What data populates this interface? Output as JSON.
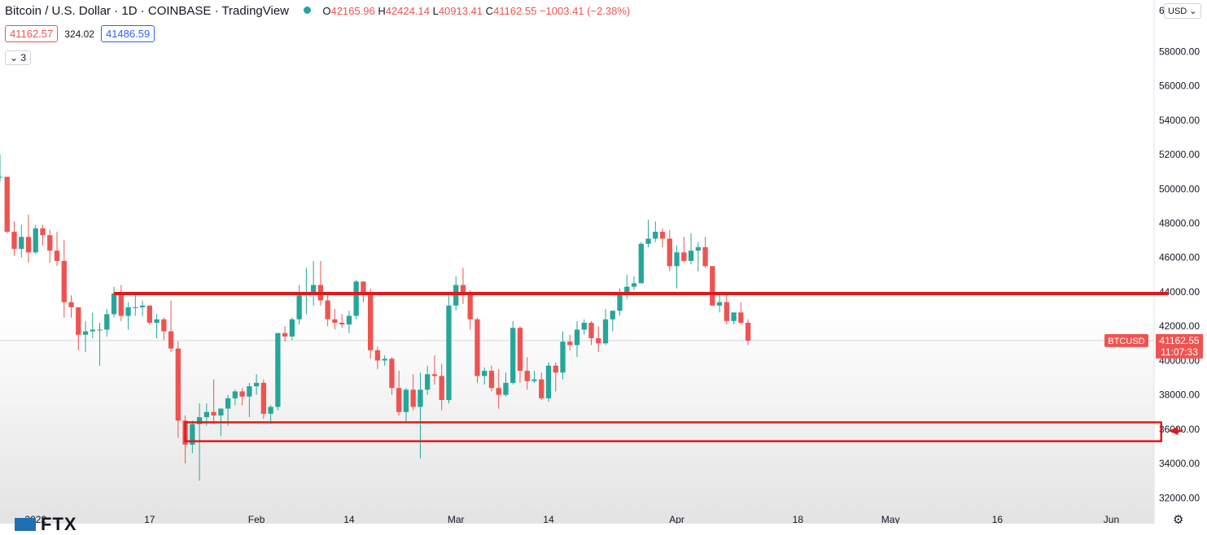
{
  "header": {
    "symbol_title": "Bitcoin / U.S. Dollar · 1D · COINBASE · TradingView",
    "open_label": "O",
    "open": "42165.96",
    "high_label": "H",
    "high": "42424.14",
    "low_label": "L",
    "low": "40913.41",
    "close_label": "C",
    "close": "41162.55",
    "change": "−1003.41 (−2.38%)"
  },
  "trade": {
    "sell": "41162.57",
    "spread": "324.02",
    "buy": "41486.59"
  },
  "indicator": {
    "label": "3"
  },
  "currency": {
    "label": "USD"
  },
  "price_tag": {
    "symbol": "BTCUSD",
    "price": "41162.55",
    "countdown": "11:07:33"
  },
  "watermark": {
    "label": "FTX"
  },
  "colors": {
    "up": "#26a69a",
    "down": "#ef5350",
    "annotation": "#e0191a",
    "axis_text": "#131722"
  },
  "chart_data": {
    "type": "candlestick",
    "y_axis": {
      "ticks": [
        32000,
        34000,
        36000,
        38000,
        40000,
        42000,
        44000,
        46000,
        48000,
        50000,
        52000,
        54000,
        56000,
        58000
      ],
      "tick_labels": [
        "32000.00",
        "34000.00",
        "36000.00",
        "38000.00",
        "40000.00",
        "42000.00",
        "44000.00",
        "46000.00",
        "48000.00",
        "50000.00",
        "52000.00",
        "54000.00",
        "56000.00",
        "58000.00"
      ],
      "top_partial_label": "6",
      "range": [
        30500,
        61000
      ]
    },
    "x_axis": {
      "date_range": [
        "2021-12-27",
        "2022-06-07"
      ],
      "ticks": [
        {
          "date": "2022-01-01",
          "label": "2022"
        },
        {
          "date": "2022-01-17",
          "label": "17"
        },
        {
          "date": "2022-02-01",
          "label": "Feb"
        },
        {
          "date": "2022-02-14",
          "label": "14"
        },
        {
          "date": "2022-03-01",
          "label": "Mar"
        },
        {
          "date": "2022-03-14",
          "label": "14"
        },
        {
          "date": "2022-04-01",
          "label": "Apr"
        },
        {
          "date": "2022-04-18",
          "label": "18"
        },
        {
          "date": "2022-05-01",
          "label": "May"
        },
        {
          "date": "2022-05-16",
          "label": "16"
        },
        {
          "date": "2022-06-01",
          "label": "Jun"
        }
      ]
    },
    "candles": [
      {
        "date": "2021-12-27",
        "o": 50700,
        "h": 52000,
        "l": 50400,
        "c": 50700
      },
      {
        "date": "2021-12-28",
        "o": 50700,
        "h": 50700,
        "l": 47400,
        "c": 47500
      },
      {
        "date": "2021-12-29",
        "o": 47500,
        "h": 48100,
        "l": 46100,
        "c": 46500
      },
      {
        "date": "2021-12-30",
        "o": 46500,
        "h": 47900,
        "l": 46000,
        "c": 47200
      },
      {
        "date": "2021-12-31",
        "o": 47200,
        "h": 48500,
        "l": 45700,
        "c": 46300
      },
      {
        "date": "2022-01-01",
        "o": 46300,
        "h": 47900,
        "l": 46200,
        "c": 47700
      },
      {
        "date": "2022-01-02",
        "o": 47700,
        "h": 47900,
        "l": 46700,
        "c": 47300
      },
      {
        "date": "2022-01-03",
        "o": 47300,
        "h": 47600,
        "l": 45700,
        "c": 46400
      },
      {
        "date": "2022-01-04",
        "o": 46400,
        "h": 47500,
        "l": 45500,
        "c": 45800
      },
      {
        "date": "2022-01-05",
        "o": 45800,
        "h": 47000,
        "l": 42500,
        "c": 43400
      },
      {
        "date": "2022-01-06",
        "o": 43400,
        "h": 43800,
        "l": 42500,
        "c": 43100
      },
      {
        "date": "2022-01-07",
        "o": 43100,
        "h": 43100,
        "l": 40600,
        "c": 41500
      },
      {
        "date": "2022-01-08",
        "o": 41500,
        "h": 42300,
        "l": 40500,
        "c": 41700
      },
      {
        "date": "2022-01-09",
        "o": 41700,
        "h": 42800,
        "l": 41300,
        "c": 41800
      },
      {
        "date": "2022-01-10",
        "o": 41800,
        "h": 42200,
        "l": 39700,
        "c": 41800
      },
      {
        "date": "2022-01-11",
        "o": 41800,
        "h": 43000,
        "l": 41400,
        "c": 42700
      },
      {
        "date": "2022-01-12",
        "o": 42700,
        "h": 44300,
        "l": 42500,
        "c": 43900
      },
      {
        "date": "2022-01-13",
        "o": 43900,
        "h": 44400,
        "l": 42300,
        "c": 42600
      },
      {
        "date": "2022-01-14",
        "o": 42600,
        "h": 43400,
        "l": 41800,
        "c": 43100
      },
      {
        "date": "2022-01-15",
        "o": 43100,
        "h": 43800,
        "l": 42600,
        "c": 43100
      },
      {
        "date": "2022-01-16",
        "o": 43100,
        "h": 43500,
        "l": 42600,
        "c": 43200
      },
      {
        "date": "2022-01-17",
        "o": 43200,
        "h": 43200,
        "l": 42100,
        "c": 42200
      },
      {
        "date": "2022-01-18",
        "o": 42200,
        "h": 42700,
        "l": 41300,
        "c": 42400
      },
      {
        "date": "2022-01-19",
        "o": 42400,
        "h": 42500,
        "l": 41200,
        "c": 41700
      },
      {
        "date": "2022-01-20",
        "o": 41700,
        "h": 43500,
        "l": 40500,
        "c": 40700
      },
      {
        "date": "2022-01-21",
        "o": 40700,
        "h": 41100,
        "l": 35500,
        "c": 36500
      },
      {
        "date": "2022-01-22",
        "o": 36500,
        "h": 36800,
        "l": 34000,
        "c": 35100
      },
      {
        "date": "2022-01-23",
        "o": 35100,
        "h": 36500,
        "l": 34600,
        "c": 36300
      },
      {
        "date": "2022-01-24",
        "o": 36300,
        "h": 37500,
        "l": 33000,
        "c": 36700
      },
      {
        "date": "2022-01-25",
        "o": 36700,
        "h": 37500,
        "l": 36200,
        "c": 37000
      },
      {
        "date": "2022-01-26",
        "o": 37000,
        "h": 38900,
        "l": 36300,
        "c": 36800
      },
      {
        "date": "2022-01-27",
        "o": 36800,
        "h": 37200,
        "l": 35600,
        "c": 37200
      },
      {
        "date": "2022-01-28",
        "o": 37200,
        "h": 38000,
        "l": 36200,
        "c": 37800
      },
      {
        "date": "2022-01-29",
        "o": 37800,
        "h": 38300,
        "l": 37400,
        "c": 38200
      },
      {
        "date": "2022-01-30",
        "o": 38200,
        "h": 38400,
        "l": 37400,
        "c": 37900
      },
      {
        "date": "2022-01-31",
        "o": 37900,
        "h": 38700,
        "l": 36700,
        "c": 38500
      },
      {
        "date": "2022-02-01",
        "o": 38500,
        "h": 39200,
        "l": 38000,
        "c": 38700
      },
      {
        "date": "2022-02-02",
        "o": 38700,
        "h": 38900,
        "l": 36600,
        "c": 36900
      },
      {
        "date": "2022-02-03",
        "o": 36900,
        "h": 37400,
        "l": 36300,
        "c": 37300
      },
      {
        "date": "2022-02-04",
        "o": 37300,
        "h": 41600,
        "l": 37100,
        "c": 41600
      },
      {
        "date": "2022-02-05",
        "o": 41600,
        "h": 42000,
        "l": 41100,
        "c": 41400
      },
      {
        "date": "2022-02-06",
        "o": 41400,
        "h": 42500,
        "l": 41200,
        "c": 42400
      },
      {
        "date": "2022-02-07",
        "o": 42400,
        "h": 44400,
        "l": 42100,
        "c": 43800
      },
      {
        "date": "2022-02-08",
        "o": 43800,
        "h": 45400,
        "l": 42700,
        "c": 44000
      },
      {
        "date": "2022-02-09",
        "o": 44000,
        "h": 45800,
        "l": 43200,
        "c": 44400
      },
      {
        "date": "2022-02-10",
        "o": 44400,
        "h": 45800,
        "l": 43200,
        "c": 43500
      },
      {
        "date": "2022-02-11",
        "o": 43500,
        "h": 43900,
        "l": 42000,
        "c": 42400
      },
      {
        "date": "2022-02-12",
        "o": 42400,
        "h": 43000,
        "l": 41800,
        "c": 42200
      },
      {
        "date": "2022-02-13",
        "o": 42200,
        "h": 42700,
        "l": 41900,
        "c": 42100
      },
      {
        "date": "2022-02-14",
        "o": 42100,
        "h": 42900,
        "l": 41600,
        "c": 42600
      },
      {
        "date": "2022-02-15",
        "o": 42600,
        "h": 44700,
        "l": 42400,
        "c": 44600
      },
      {
        "date": "2022-02-16",
        "o": 44600,
        "h": 44600,
        "l": 43400,
        "c": 43900
      },
      {
        "date": "2022-02-17",
        "o": 43900,
        "h": 44200,
        "l": 40100,
        "c": 40600
      },
      {
        "date": "2022-02-18",
        "o": 40600,
        "h": 40800,
        "l": 39500,
        "c": 40000
      },
      {
        "date": "2022-02-19",
        "o": 40000,
        "h": 40300,
        "l": 39700,
        "c": 40100
      },
      {
        "date": "2022-02-20",
        "o": 40100,
        "h": 40200,
        "l": 38000,
        "c": 38400
      },
      {
        "date": "2022-02-21",
        "o": 38400,
        "h": 39400,
        "l": 36800,
        "c": 37000
      },
      {
        "date": "2022-02-22",
        "o": 37000,
        "h": 38400,
        "l": 36400,
        "c": 38300
      },
      {
        "date": "2022-02-23",
        "o": 38300,
        "h": 39200,
        "l": 37100,
        "c": 37300
      },
      {
        "date": "2022-02-24",
        "o": 37300,
        "h": 39300,
        "l": 34300,
        "c": 38300
      },
      {
        "date": "2022-02-25",
        "o": 38300,
        "h": 39700,
        "l": 38000,
        "c": 39200
      },
      {
        "date": "2022-02-26",
        "o": 39200,
        "h": 40300,
        "l": 38600,
        "c": 39100
      },
      {
        "date": "2022-02-27",
        "o": 39100,
        "h": 39800,
        "l": 37100,
        "c": 37700
      },
      {
        "date": "2022-02-28",
        "o": 37700,
        "h": 43900,
        "l": 37500,
        "c": 43200
      },
      {
        "date": "2022-03-01",
        "o": 43200,
        "h": 44900,
        "l": 42900,
        "c": 44400
      },
      {
        "date": "2022-03-02",
        "o": 44400,
        "h": 45400,
        "l": 43300,
        "c": 44000
      },
      {
        "date": "2022-03-03",
        "o": 44000,
        "h": 44100,
        "l": 41800,
        "c": 42400
      },
      {
        "date": "2022-03-04",
        "o": 42400,
        "h": 42500,
        "l": 38700,
        "c": 39100
      },
      {
        "date": "2022-03-05",
        "o": 39100,
        "h": 39600,
        "l": 38600,
        "c": 39400
      },
      {
        "date": "2022-03-06",
        "o": 39400,
        "h": 39700,
        "l": 38200,
        "c": 38400
      },
      {
        "date": "2022-03-07",
        "o": 38400,
        "h": 39500,
        "l": 37200,
        "c": 38000
      },
      {
        "date": "2022-03-08",
        "o": 38000,
        "h": 39300,
        "l": 37900,
        "c": 38700
      },
      {
        "date": "2022-03-09",
        "o": 38700,
        "h": 42300,
        "l": 38600,
        "c": 41900
      },
      {
        "date": "2022-03-10",
        "o": 41900,
        "h": 42000,
        "l": 38700,
        "c": 39400
      },
      {
        "date": "2022-03-11",
        "o": 39400,
        "h": 40200,
        "l": 38300,
        "c": 38800
      },
      {
        "date": "2022-03-12",
        "o": 38800,
        "h": 39400,
        "l": 38700,
        "c": 38900
      },
      {
        "date": "2022-03-13",
        "o": 38900,
        "h": 39300,
        "l": 37700,
        "c": 37800
      },
      {
        "date": "2022-03-14",
        "o": 37800,
        "h": 39900,
        "l": 37600,
        "c": 39700
      },
      {
        "date": "2022-03-15",
        "o": 39700,
        "h": 39900,
        "l": 38200,
        "c": 39300
      },
      {
        "date": "2022-03-16",
        "o": 39300,
        "h": 41700,
        "l": 38900,
        "c": 41100
      },
      {
        "date": "2022-03-17",
        "o": 41100,
        "h": 41500,
        "l": 40600,
        "c": 40900
      },
      {
        "date": "2022-03-18",
        "o": 40900,
        "h": 42300,
        "l": 40200,
        "c": 41800
      },
      {
        "date": "2022-03-19",
        "o": 41800,
        "h": 42400,
        "l": 41500,
        "c": 42200
      },
      {
        "date": "2022-03-20",
        "o": 42200,
        "h": 42300,
        "l": 40900,
        "c": 41300
      },
      {
        "date": "2022-03-21",
        "o": 41300,
        "h": 42000,
        "l": 40500,
        "c": 41000
      },
      {
        "date": "2022-03-22",
        "o": 41000,
        "h": 43000,
        "l": 40900,
        "c": 42400
      },
      {
        "date": "2022-03-23",
        "o": 42400,
        "h": 42900,
        "l": 41700,
        "c": 42900
      },
      {
        "date": "2022-03-24",
        "o": 42900,
        "h": 44200,
        "l": 42600,
        "c": 44000
      },
      {
        "date": "2022-03-25",
        "o": 44000,
        "h": 45000,
        "l": 43600,
        "c": 44300
      },
      {
        "date": "2022-03-26",
        "o": 44300,
        "h": 44900,
        "l": 44100,
        "c": 44500
      },
      {
        "date": "2022-03-27",
        "o": 44500,
        "h": 46900,
        "l": 44500,
        "c": 46800
      },
      {
        "date": "2022-03-28",
        "o": 46800,
        "h": 48200,
        "l": 46600,
        "c": 47100
      },
      {
        "date": "2022-03-29",
        "o": 47100,
        "h": 48100,
        "l": 46900,
        "c": 47500
      },
      {
        "date": "2022-03-30",
        "o": 47500,
        "h": 47700,
        "l": 46600,
        "c": 47100
      },
      {
        "date": "2022-03-31",
        "o": 47100,
        "h": 47600,
        "l": 45200,
        "c": 45500
      },
      {
        "date": "2022-04-01",
        "o": 45500,
        "h": 46700,
        "l": 44200,
        "c": 46300
      },
      {
        "date": "2022-04-02",
        "o": 46300,
        "h": 47200,
        "l": 45700,
        "c": 45800
      },
      {
        "date": "2022-04-03",
        "o": 45800,
        "h": 47400,
        "l": 45600,
        "c": 46400
      },
      {
        "date": "2022-04-04",
        "o": 46400,
        "h": 46900,
        "l": 45200,
        "c": 46600
      },
      {
        "date": "2022-04-05",
        "o": 46600,
        "h": 47200,
        "l": 45400,
        "c": 45500
      },
      {
        "date": "2022-04-06",
        "o": 45500,
        "h": 45500,
        "l": 43200,
        "c": 43200
      },
      {
        "date": "2022-04-07",
        "o": 43200,
        "h": 43900,
        "l": 42800,
        "c": 43400
      },
      {
        "date": "2022-04-08",
        "o": 43400,
        "h": 43900,
        "l": 42100,
        "c": 42300
      },
      {
        "date": "2022-04-09",
        "o": 42300,
        "h": 42800,
        "l": 42100,
        "c": 42800
      },
      {
        "date": "2022-04-10",
        "o": 42800,
        "h": 43400,
        "l": 42100,
        "c": 42200
      },
      {
        "date": "2022-04-11",
        "o": 42200,
        "h": 42400,
        "l": 40900,
        "c": 41160
      }
    ],
    "annotations": {
      "resistance_line": {
        "price": 43900,
        "from": "2022-01-12",
        "to": "2022-06-09"
      },
      "support_zone": {
        "top": 36400,
        "bottom": 35300,
        "from": "2022-01-22",
        "to": "2022-06-08"
      },
      "arrow": {
        "price": 35900,
        "from": "2022-06-11",
        "to": "2022-06-09"
      },
      "current_price_line": 41162.55
    }
  }
}
